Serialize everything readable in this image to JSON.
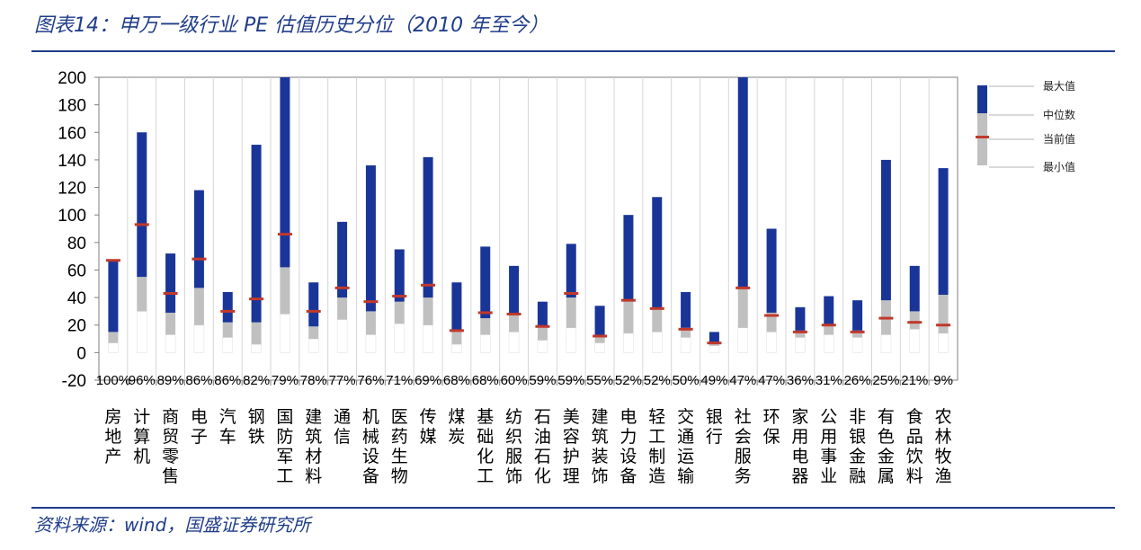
{
  "title": "图表14：申万一级行业 PE 估值历史分位（2010 年至今）",
  "source": "资料来源：wind，国盛证券研究所",
  "chart_data": {
    "type": "bar",
    "ylim": [
      -20,
      200
    ],
    "yticks": [
      "200",
      "180",
      "160",
      "140",
      "120",
      "100",
      "80",
      "60",
      "40",
      "20",
      "0",
      "-20"
    ],
    "legend": {
      "position": "right",
      "items": [
        {
          "key": "max",
          "label": "最大值"
        },
        {
          "key": "median",
          "label": "中位数"
        },
        {
          "key": "current",
          "label": "当前值"
        },
        {
          "key": "min",
          "label": "最小值"
        }
      ]
    },
    "colors": {
      "upper": "#1a3598",
      "lower": "#c0c0c0",
      "current": "#c0392b"
    },
    "categories": [
      "房地产",
      "计算机",
      "商贸零售",
      "电子",
      "汽车",
      "钢铁",
      "国防军工",
      "建筑材料",
      "通信",
      "机械设备",
      "医药生物",
      "传媒",
      "煤炭",
      "基础化工",
      "纺织服饰",
      "石油石化",
      "美容护理",
      "建筑装饰",
      "电力设备",
      "轻工制造",
      "交通运输",
      "银行",
      "社会服务",
      "环保",
      "家用电器",
      "公用事业",
      "非银金融",
      "有色金属",
      "食品饮料",
      "农林牧渔"
    ],
    "percentiles": [
      "100%",
      "96%",
      "89%",
      "86%",
      "86%",
      "82%",
      "79%",
      "78%",
      "77%",
      "76%",
      "71%",
      "69%",
      "68%",
      "68%",
      "60%",
      "59%",
      "59%",
      "55%",
      "52%",
      "52%",
      "50%",
      "49%",
      "47%",
      "47%",
      "36%",
      "31%",
      "26%",
      "25%",
      "21%",
      "9%"
    ],
    "max": [
      67,
      160,
      72,
      118,
      44,
      151,
      200,
      51,
      95,
      136,
      75,
      142,
      51,
      77,
      63,
      37,
      79,
      34,
      100,
      113,
      44,
      15,
      200,
      90,
      33,
      41,
      38,
      140,
      63,
      134
    ],
    "median": [
      15,
      55,
      29,
      47,
      22,
      22,
      62,
      19,
      40,
      30,
      37,
      40,
      16,
      25,
      27,
      19,
      40,
      12,
      38,
      32,
      18,
      7,
      47,
      29,
      16,
      20,
      16,
      38,
      30,
      42
    ],
    "current": [
      67,
      93,
      43,
      68,
      30,
      39,
      86,
      30,
      47,
      37,
      41,
      49,
      16,
      29,
      28,
      19,
      43,
      12,
      38,
      32,
      17,
      7,
      47,
      27,
      15,
      20,
      15,
      25,
      22,
      20
    ],
    "min": [
      7,
      30,
      13,
      20,
      11,
      6,
      28,
      10,
      24,
      13,
      21,
      20,
      6,
      13,
      15,
      9,
      18,
      7,
      14,
      15,
      11,
      5,
      18,
      15,
      11,
      13,
      11,
      13,
      17,
      14
    ]
  }
}
